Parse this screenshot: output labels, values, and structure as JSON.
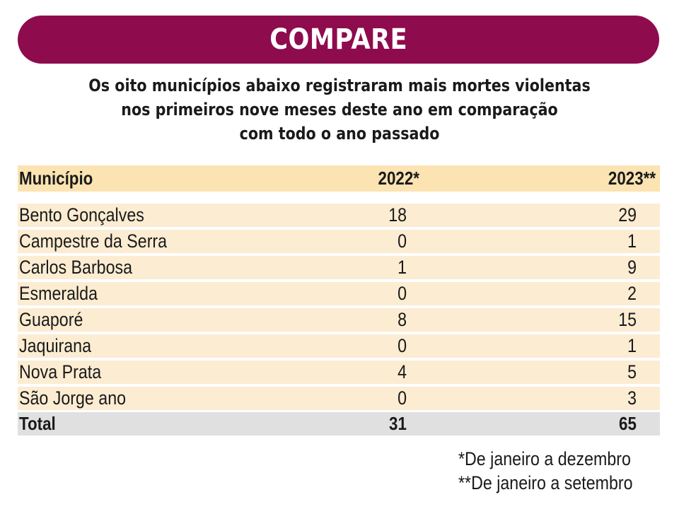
{
  "banner": {
    "title": "COMPARE",
    "color": "#8e0b4e"
  },
  "subtitle": {
    "lines": [
      "Os oito municípios abaixo registraram mais mortes violentas",
      "nos primeiros nove meses deste ano em comparação",
      "com todo o ano passado"
    ]
  },
  "table": {
    "headers": {
      "municipio": "Município",
      "y2022": "2022*",
      "y2023": "2023**"
    },
    "rows": [
      {
        "name": "Bento Gonçalves",
        "v2022": "18",
        "v2023": "29"
      },
      {
        "name": "Campestre da Serra",
        "v2022": "0",
        "v2023": "1"
      },
      {
        "name": "Carlos Barbosa",
        "v2022": "1",
        "v2023": "9"
      },
      {
        "name": "Esmeralda",
        "v2022": "0",
        "v2023": "2"
      },
      {
        "name": "Guaporé",
        "v2022": "8",
        "v2023": "15"
      },
      {
        "name": "Jaquirana",
        "v2022": "0",
        "v2023": "1"
      },
      {
        "name": "Nova Prata",
        "v2022": "4",
        "v2023": "5"
      },
      {
        "name": "São Jorge ano",
        "v2022": "0",
        "v2023": "3"
      }
    ],
    "total": {
      "label": "Total",
      "v2022": "31",
      "v2023": "65"
    },
    "header_color": "#fbe3b2",
    "row_color": "#fcecd2",
    "total_color": "#e0e0e0"
  },
  "footnotes": [
    "*De janeiro a dezembro",
    "**De janeiro a setembro"
  ]
}
